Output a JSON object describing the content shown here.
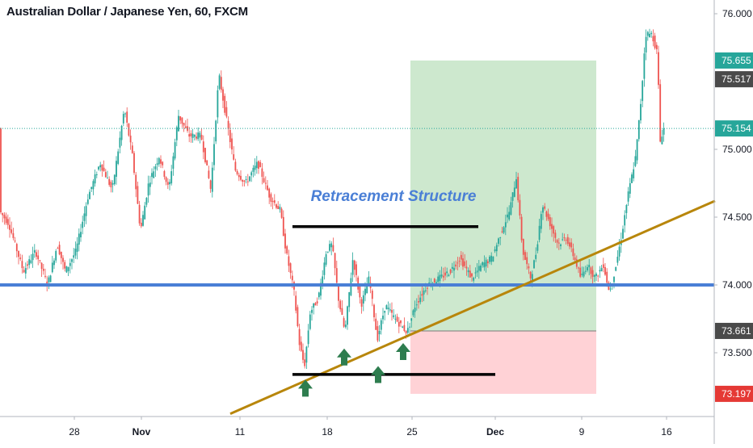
{
  "chart_data": {
    "type": "candlestick",
    "title": "Australian Dollar / Japanese Yen, 60, FXCM",
    "symbol": "AUDJPY",
    "timeframe": "60",
    "source": "FXCM",
    "y_ticks": [
      73.5,
      74.0,
      74.5,
      75.0,
      76.0
    ],
    "y_tick_labels": [
      "73.500",
      "74.000",
      "74.500",
      "75.000",
      "76.000"
    ],
    "ylim": [
      73.0,
      76.2
    ],
    "x_ticks": [
      "28",
      "Nov",
      "11",
      "18",
      "25",
      "Dec",
      "9",
      "16"
    ],
    "price_path": [
      [
        0,
        74.55
      ],
      [
        12,
        74.45
      ],
      [
        30,
        74.1
      ],
      [
        45,
        74.25
      ],
      [
        60,
        74.0
      ],
      [
        72,
        74.3
      ],
      [
        82,
        74.1
      ],
      [
        95,
        74.25
      ],
      [
        110,
        74.65
      ],
      [
        125,
        74.9
      ],
      [
        140,
        74.7
      ],
      [
        155,
        75.3
      ],
      [
        165,
        74.95
      ],
      [
        175,
        74.4
      ],
      [
        185,
        74.75
      ],
      [
        198,
        74.95
      ],
      [
        210,
        74.7
      ],
      [
        222,
        75.25
      ],
      [
        235,
        75.1
      ],
      [
        250,
        75.1
      ],
      [
        262,
        74.7
      ],
      [
        272,
        75.55
      ],
      [
        282,
        75.2
      ],
      [
        292,
        74.85
      ],
      [
        305,
        74.75
      ],
      [
        320,
        74.9
      ],
      [
        335,
        74.65
      ],
      [
        348,
        74.55
      ],
      [
        355,
        74.25
      ],
      [
        365,
        73.95
      ],
      [
        372,
        73.55
      ],
      [
        378,
        73.4
      ],
      [
        385,
        73.8
      ],
      [
        395,
        73.9
      ],
      [
        405,
        74.25
      ],
      [
        412,
        74.3
      ],
      [
        420,
        73.9
      ],
      [
        428,
        73.65
      ],
      [
        438,
        74.2
      ],
      [
        448,
        73.85
      ],
      [
        458,
        74.05
      ],
      [
        468,
        73.6
      ],
      [
        478,
        73.85
      ],
      [
        490,
        73.75
      ],
      [
        505,
        73.65
      ],
      [
        515,
        73.85
      ],
      [
        530,
        74.0
      ],
      [
        545,
        74.05
      ],
      [
        558,
        74.1
      ],
      [
        570,
        74.2
      ],
      [
        585,
        74.05
      ],
      [
        598,
        74.15
      ],
      [
        610,
        74.2
      ],
      [
        622,
        74.4
      ],
      [
        632,
        74.55
      ],
      [
        640,
        74.8
      ],
      [
        648,
        74.25
      ],
      [
        658,
        74.05
      ],
      [
        665,
        74.25
      ],
      [
        672,
        74.6
      ],
      [
        682,
        74.45
      ],
      [
        692,
        74.3
      ],
      [
        702,
        74.35
      ],
      [
        712,
        74.2
      ],
      [
        720,
        74.05
      ],
      [
        728,
        74.15
      ],
      [
        738,
        74.05
      ],
      [
        748,
        74.15
      ],
      [
        755,
        73.95
      ],
      [
        762,
        74.1
      ],
      [
        770,
        74.35
      ],
      [
        778,
        74.65
      ],
      [
        788,
        74.95
      ],
      [
        795,
        75.4
      ],
      [
        800,
        75.85
      ],
      [
        808,
        75.85
      ],
      [
        815,
        75.7
      ],
      [
        818,
        75.05
      ],
      [
        822,
        75.154
      ]
    ],
    "horizontal_levels": [
      {
        "name": "support",
        "price": 74.0,
        "color": "#4a7fd6"
      }
    ],
    "trendline": {
      "color": "#b8860b",
      "points": [
        [
          285,
          73.05
        ],
        [
          885,
          74.62
        ]
      ]
    },
    "structure_lines": [
      {
        "name": "upper",
        "price": 74.43,
        "x_from": 362,
        "x_to": 592,
        "color": "#000000"
      },
      {
        "name": "lower",
        "price": 73.34,
        "x_from": 362,
        "x_to": 613,
        "color": "#000000"
      }
    ],
    "markers": [
      {
        "x": 378,
        "price": 73.23,
        "direction": "up"
      },
      {
        "x": 426,
        "price": 73.46,
        "direction": "up"
      },
      {
        "x": 468,
        "price": 73.33,
        "direction": "up"
      },
      {
        "x": 499,
        "price": 73.5,
        "direction": "up"
      }
    ],
    "position": {
      "x_from": 508,
      "x_to": 738,
      "entry": 73.661,
      "target": 75.655,
      "stop": 73.197
    },
    "annotation": {
      "text": "Retracement Structure",
      "color": "#4a7fd6"
    },
    "price_labels": [
      {
        "price": 75.655,
        "label": "75.655",
        "bg": "#26a69a"
      },
      {
        "price": 75.517,
        "label": "75.517",
        "bg": "#4a4a4a"
      },
      {
        "price": 75.154,
        "label": "75.154",
        "bg": "#26a69a"
      },
      {
        "price": 73.661,
        "label": "73.661",
        "bg": "#4a4a4a"
      },
      {
        "price": 73.197,
        "label": "73.197",
        "bg": "#e53935"
      }
    ],
    "current_price": 75.154,
    "colors": {
      "up": "#26a69a",
      "down": "#ef5350",
      "target_zone": "#c8e6c9",
      "stop_zone": "#ffcdd2"
    }
  }
}
